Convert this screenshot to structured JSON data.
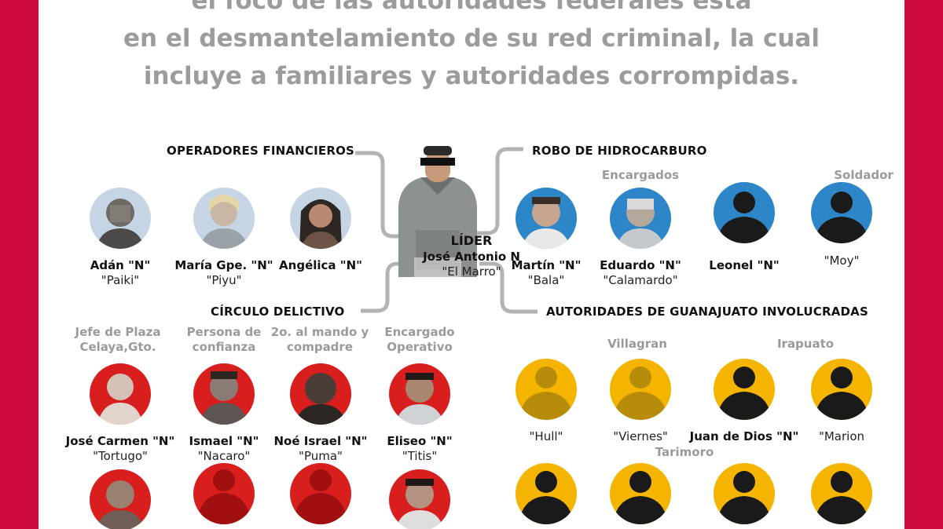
{
  "intro": {
    "line1": "el foco de las autoridades federales está",
    "line2": "en el desmantelamiento de su red criminal, la cual",
    "line3": "incluye a familiares y autoridades corrompidas."
  },
  "leader": {
    "title": "LÍDER",
    "name": "José Antonio N",
    "alias": "\"El Marro\""
  },
  "sections": {
    "financial": "OPERADORES FINANCIEROS",
    "fuel": "ROBO DE HIDROCARBURO",
    "circle": "CÍRCULO DELICTIVO",
    "authorities": "AUTORIDADES DE GUANAJUATO INVOLUCRADAS"
  },
  "subheads": {
    "encargados": "Encargados",
    "soldador": "Soldador",
    "jefe_plaza": "Jefe de Plaza Celaya,Gto.",
    "confianza": "Persona de confianza",
    "mando": "2o. al mando y compadre",
    "operativo": "Encargado Operativo",
    "villagran": "Villagran",
    "irapuato": "Irapuato",
    "tarimoro": "Tarimoro"
  },
  "financial_people": [
    {
      "name": "Adán \"N\"",
      "alias": "\"Paiki\""
    },
    {
      "name": "María Gpe. \"N\"",
      "alias": "\"Piyu\""
    },
    {
      "name": "Angélica \"N\"",
      "alias": ""
    }
  ],
  "fuel_people": [
    {
      "name": "Martín \"N\"",
      "alias": "\"Bala\""
    },
    {
      "name": "Eduardo \"N\"",
      "alias": "\"Calamardo\""
    },
    {
      "name": "Leonel \"N\"",
      "alias": ""
    },
    {
      "name": "",
      "alias": "\"Moy\""
    }
  ],
  "circle_people": [
    {
      "name": "José Carmen \"N\"",
      "alias": "\"Tortugo\""
    },
    {
      "name": "Ismael \"N\"",
      "alias": "\"Nacaro\""
    },
    {
      "name": "Noé Israel \"N\"",
      "alias": "\"Puma\""
    },
    {
      "name": "Eliseo \"N\"",
      "alias": "\"Titis\""
    }
  ],
  "authority_people": [
    {
      "name": "",
      "alias": "\"Hull\""
    },
    {
      "name": "",
      "alias": "\"Viernes\""
    },
    {
      "name": "Juan de Dios \"N\"",
      "alias": ""
    },
    {
      "name": "",
      "alias": "\"Marion"
    }
  ],
  "colors": {
    "background_frame": "#cf0a3c",
    "intro_text": "#9c9c9c",
    "connector_lines": "#b3b3b3",
    "financial_circle": "#c5d5e4",
    "fuel_circle": "#2d86c7",
    "circle_red": "#d91e1e",
    "authorities_yellow": "#f5b400",
    "silhouette_dark": "#1a1a1a",
    "silhouette_olive": "#b78c0a",
    "silhouette_red": "#a01010"
  }
}
